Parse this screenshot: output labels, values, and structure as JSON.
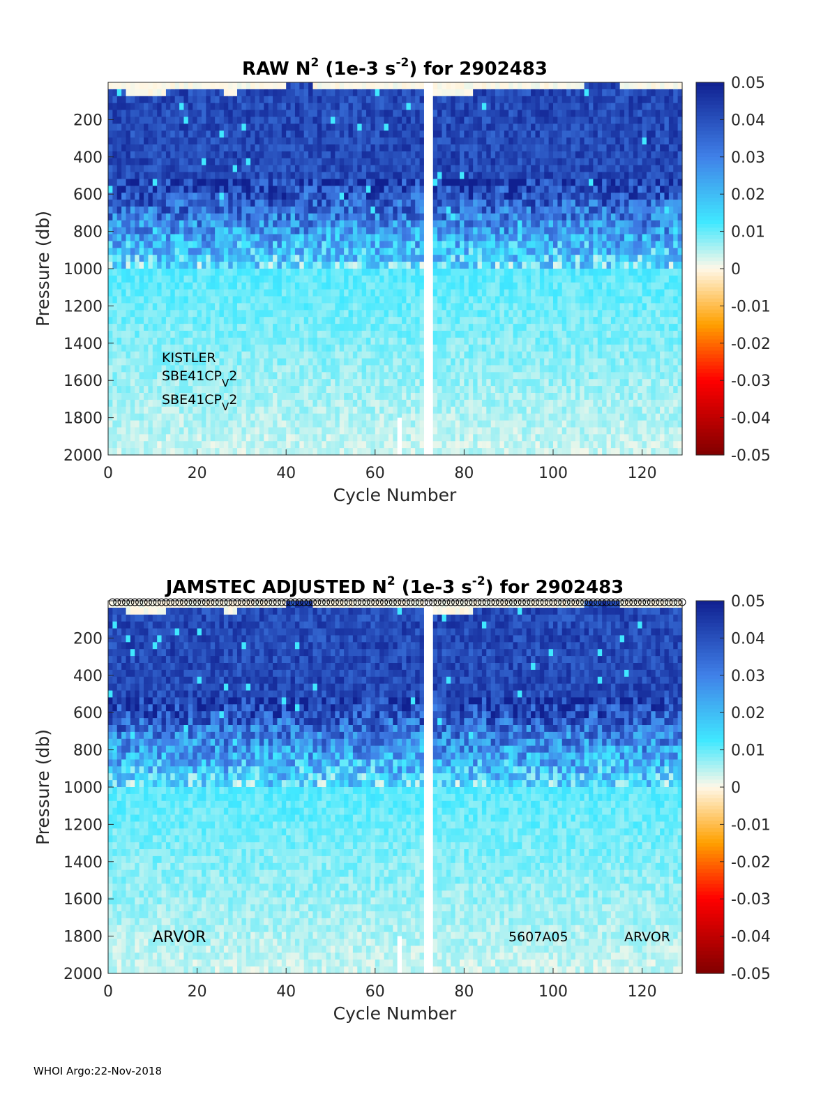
{
  "footer": "WHOI Argo:22-Nov-2018",
  "colors": {
    "neg_extreme": "#800000",
    "neg": "#ff0000",
    "neg_mid": "#ffa000",
    "zero": "#fff8e8",
    "pos_low": "#40e8ff",
    "pos_mid": "#4080e8",
    "pos_high": "#102090",
    "bar": "#ffffff",
    "marker_stroke": "#000000"
  },
  "chart_data": [
    {
      "type": "heatmap",
      "title_main": "RAW N",
      "title_sup1": "2",
      "title_mid": " (1e-3 s",
      "title_sup2": "-2",
      "title_end": ") for 2902483",
      "xlabel": "Cycle Number",
      "ylabel": "Pressure (db)",
      "xlim": [
        0,
        129
      ],
      "ylim": [
        2000,
        0
      ],
      "x_ticks": [
        "0",
        "20",
        "40",
        "60",
        "80",
        "100",
        "120"
      ],
      "y_ticks": [
        "200",
        "400",
        "600",
        "800",
        "1000",
        "1200",
        "1400",
        "1600",
        "1800",
        "2000"
      ],
      "colorbar": {
        "clim": [
          -0.05,
          0.05
        ],
        "ticks": [
          "0.05",
          "0.04",
          "0.03",
          "0.02",
          "0.01",
          "0",
          "-0.01",
          "-0.02",
          "-0.03",
          "-0.04",
          "-0.05"
        ]
      },
      "annotations": {
        "sensor1": "KISTLER",
        "sensor2_base": "SBE41CP",
        "sensor2_sub": "V",
        "sensor2_tail": "2",
        "sensor3_base": "SBE41CP",
        "sensor3_sub": "V",
        "sensor3_tail": "2"
      },
      "qc_markers": false
    },
    {
      "type": "heatmap",
      "title_main": "JAMSTEC  ADJUSTED N",
      "title_sup1": "2",
      "title_mid": " (1e-3 s",
      "title_sup2": "-2",
      "title_end": ") for 2902483",
      "xlabel": "Cycle Number",
      "ylabel": "Pressure (db)",
      "xlim": [
        0,
        129
      ],
      "ylim": [
        2000,
        0
      ],
      "x_ticks": [
        "0",
        "20",
        "40",
        "60",
        "80",
        "100",
        "120"
      ],
      "y_ticks": [
        "200",
        "400",
        "600",
        "800",
        "1000",
        "1200",
        "1400",
        "1600",
        "1800",
        "2000"
      ],
      "colorbar": {
        "clim": [
          -0.05,
          0.05
        ],
        "ticks": [
          "0.05",
          "0.04",
          "0.03",
          "0.02",
          "0.01",
          "0",
          "-0.01",
          "-0.02",
          "-0.03",
          "-0.04",
          "-0.05"
        ]
      },
      "annotations": {
        "platform_left": "ARVOR",
        "wmo_serial": "5607A05",
        "platform_right": "ARVOR"
      },
      "qc_markers": true
    }
  ]
}
